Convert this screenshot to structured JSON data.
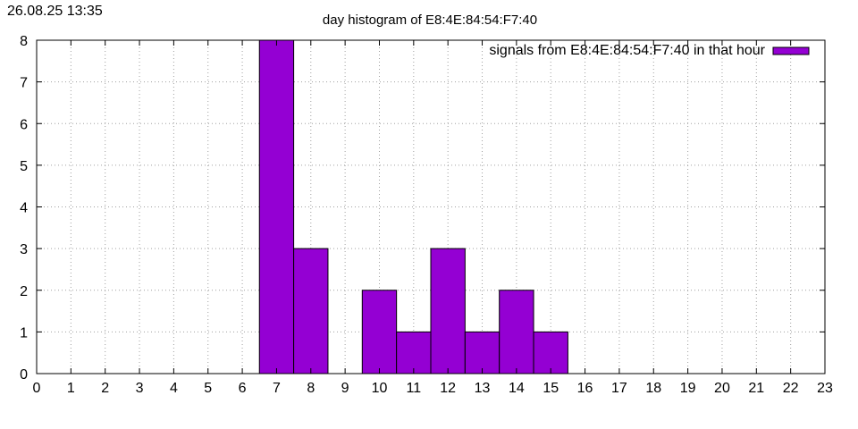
{
  "timestamp": "26.08.25 13:35",
  "chart_data": {
    "type": "bar",
    "title": "day histogram of E8:4E:84:54:F7:40",
    "xlabel": "",
    "ylabel": "",
    "xlim": [
      0,
      23
    ],
    "ylim": [
      0,
      8
    ],
    "x_ticks": [
      0,
      1,
      2,
      3,
      4,
      5,
      6,
      7,
      8,
      9,
      10,
      11,
      12,
      13,
      14,
      15,
      16,
      17,
      18,
      19,
      20,
      21,
      22,
      23
    ],
    "y_ticks": [
      0,
      1,
      2,
      3,
      4,
      5,
      6,
      7,
      8
    ],
    "grid": true,
    "legend_position": "top-right",
    "series": [
      {
        "name": "signals from E8:4E:84:54:F7:40 in that hour",
        "color": "#9400d3",
        "x": [
          7,
          8,
          10,
          11,
          12,
          13,
          14,
          15
        ],
        "values": [
          8,
          3,
          2,
          1,
          3,
          1,
          2,
          1
        ]
      }
    ]
  }
}
